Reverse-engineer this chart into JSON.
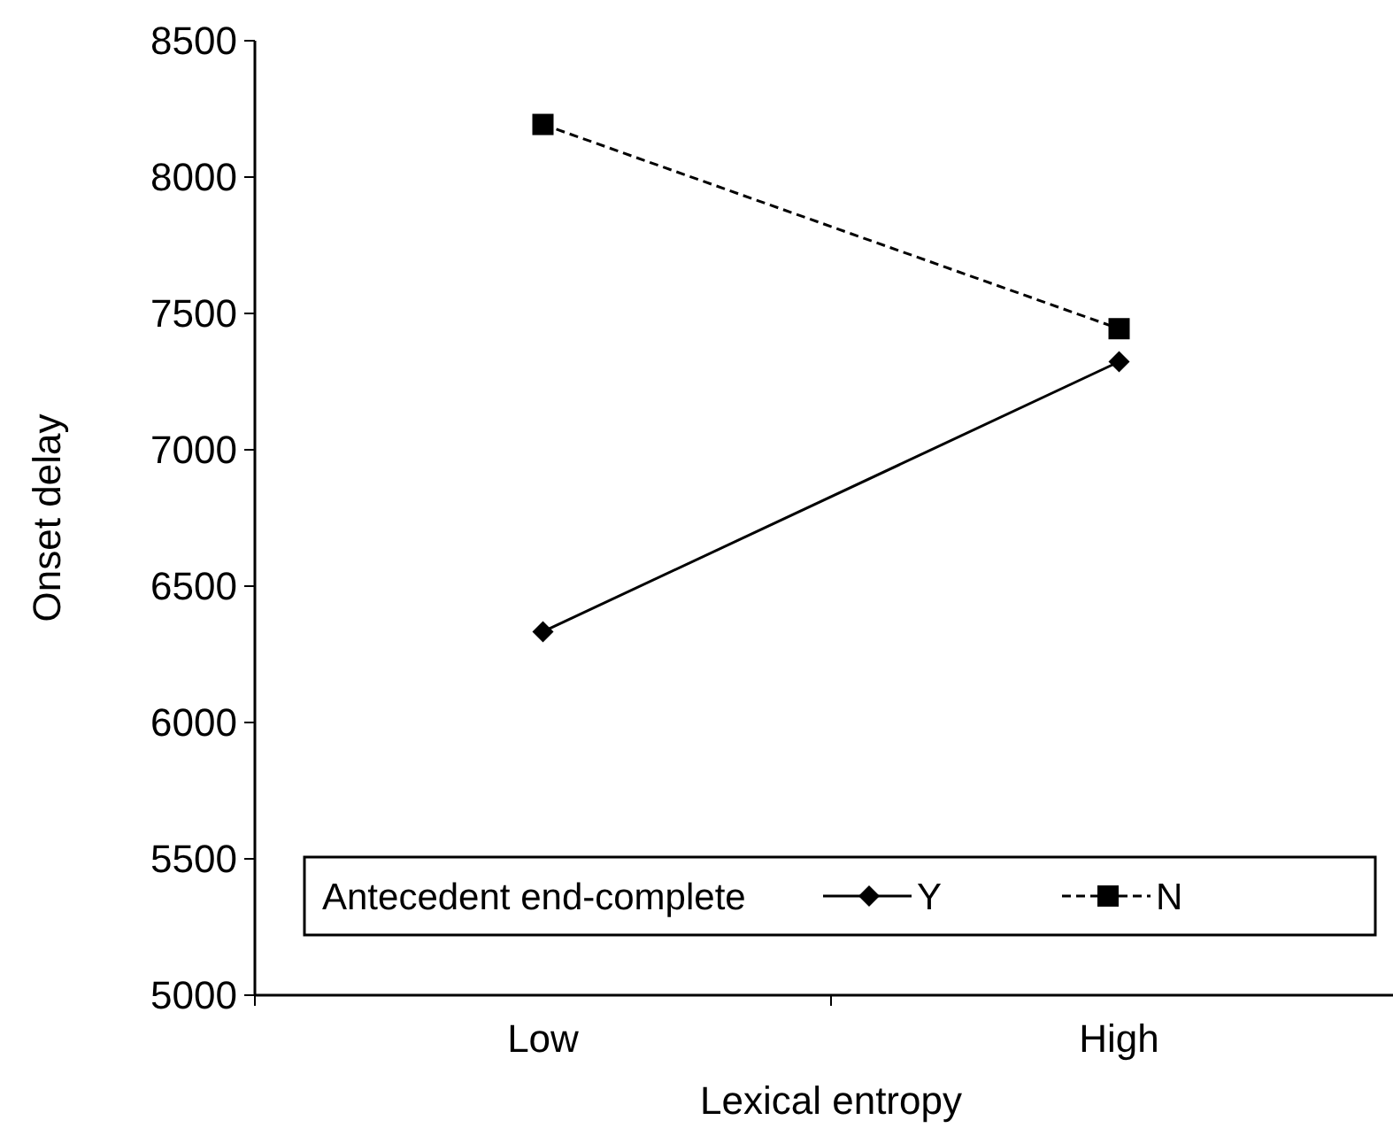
{
  "chart_data": {
    "type": "line",
    "xlabel": "Lexical entropy",
    "ylabel": "Onset delay",
    "legend_title": "Antecedent end-complete",
    "categories": [
      "Low",
      "High"
    ],
    "series": [
      {
        "name": "Y",
        "color": "#000000",
        "values": [
          6333,
          7323
        ],
        "marker": "diamond",
        "line_style": "solid"
      },
      {
        "name": "N",
        "color": "#000000",
        "values": [
          8193,
          7444
        ],
        "marker": "square",
        "line_style": "dashed"
      }
    ],
    "ylim": [
      5000,
      8500
    ],
    "yticks": [
      5000,
      5500,
      6000,
      6500,
      7000,
      7500,
      8000,
      8500
    ],
    "grid": false,
    "legend": "bottom"
  }
}
